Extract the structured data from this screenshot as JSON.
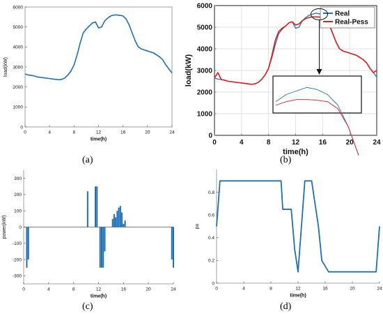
{
  "captions": [
    "(a)",
    "(b)",
    "(c)",
    "(d)"
  ],
  "chart_data": [
    {
      "panel": "a",
      "type": "line",
      "xlabel": "time(h)",
      "ylabel": "load(kW)",
      "xlim": [
        0,
        24
      ],
      "ylim": [
        0,
        6000
      ],
      "xticks": [
        0,
        4,
        8,
        12,
        16,
        20,
        24
      ],
      "yticks": [
        0,
        1000,
        2000,
        3000,
        4000,
        5000,
        6000
      ],
      "grid": false,
      "series": [
        {
          "color": "#1f6fb2",
          "x": [
            0,
            0.5,
            1,
            1.5,
            2,
            2.5,
            3,
            3.5,
            4,
            4.5,
            5,
            5.5,
            6,
            6.5,
            7,
            7.5,
            8,
            8.5,
            9,
            9.5,
            10,
            10.5,
            11,
            11.5,
            12,
            12.5,
            13,
            13.5,
            14,
            14.5,
            15,
            15.5,
            16,
            16.5,
            17,
            17.5,
            18,
            18.5,
            19,
            19.5,
            20,
            20.5,
            21,
            21.5,
            22,
            22.5,
            23,
            23.5,
            24
          ],
          "y": [
            2650,
            2600,
            2580,
            2550,
            2500,
            2480,
            2460,
            2440,
            2420,
            2400,
            2380,
            2360,
            2380,
            2450,
            2600,
            2800,
            3100,
            3600,
            4200,
            4700,
            4900,
            5050,
            5200,
            5250,
            4950,
            5000,
            5300,
            5450,
            5550,
            5600,
            5600,
            5580,
            5550,
            5400,
            5100,
            4700,
            4300,
            4000,
            3900,
            3850,
            3800,
            3750,
            3700,
            3600,
            3500,
            3350,
            3100,
            2900,
            2700
          ]
        }
      ]
    },
    {
      "panel": "b",
      "type": "line",
      "xlabel": "time(h)",
      "ylabel": "load(kW)",
      "xlim": [
        0,
        24
      ],
      "ylim": [
        0,
        6000
      ],
      "xticks": [
        0,
        4,
        8,
        12,
        16,
        20,
        24
      ],
      "yticks": [
        0,
        1000,
        2000,
        3000,
        4000,
        5000,
        6000
      ],
      "grid": true,
      "legend": "top-right",
      "series": [
        {
          "name": "Real",
          "color": "#1f77b4",
          "x": [
            0,
            0.5,
            1,
            1.5,
            2,
            2.5,
            3,
            3.5,
            4,
            4.5,
            5,
            5.5,
            6,
            6.5,
            7,
            7.5,
            8,
            8.5,
            9,
            9.5,
            10,
            10.5,
            11,
            11.5,
            12,
            12.5,
            13,
            13.5,
            14,
            14.5,
            15,
            15.5,
            16,
            16.5,
            17,
            17.5,
            18,
            18.5,
            19,
            19.5,
            20,
            20.5,
            21,
            21.5,
            22,
            22.5,
            23,
            23.5,
            24
          ],
          "y": [
            2650,
            2600,
            2580,
            2550,
            2500,
            2480,
            2460,
            2440,
            2420,
            2400,
            2380,
            2360,
            2380,
            2450,
            2600,
            2800,
            3100,
            3600,
            4200,
            4700,
            4900,
            5050,
            5200,
            5250,
            4950,
            5000,
            5300,
            5450,
            5550,
            5600,
            5650,
            5620,
            5550,
            5400,
            5100,
            4700,
            4300,
            4000,
            3900,
            3850,
            3800,
            3750,
            3700,
            3600,
            3500,
            3350,
            3100,
            2900,
            2700
          ]
        },
        {
          "name": "Real-Pess",
          "color": "#e3191c",
          "x": [
            0,
            0.5,
            1,
            1.5,
            2,
            2.5,
            3,
            3.5,
            4,
            4.5,
            5,
            5.5,
            6,
            6.5,
            7,
            7.5,
            8,
            8.5,
            9,
            9.5,
            10,
            10.5,
            11,
            11.5,
            12,
            12.5,
            13,
            13.5,
            14,
            14.5,
            15,
            15.5,
            16,
            16.5,
            17,
            17.5,
            18,
            18.5,
            19,
            19.5,
            20,
            20.5,
            21,
            21.5,
            22,
            22.5,
            23,
            23.5,
            24
          ],
          "y": [
            2650,
            2900,
            2580,
            2550,
            2500,
            2480,
            2460,
            2440,
            2420,
            2400,
            2380,
            2360,
            2380,
            2450,
            2600,
            2800,
            3100,
            3700,
            4400,
            4800,
            4950,
            5050,
            5200,
            5250,
            5100,
            5150,
            5300,
            5400,
            5450,
            5480,
            5480,
            5470,
            5450,
            5350,
            5100,
            4700,
            4300,
            4000,
            3900,
            3850,
            3800,
            3750,
            3700,
            3600,
            3500,
            3350,
            3100,
            2900,
            3000
          ]
        }
      ],
      "annotation": {
        "type": "zoom-inset",
        "ellipse_center": [
          15.5,
          5600
        ],
        "inset_x_range": [
          13.5,
          17.5
        ],
        "inset_y_range": [
          5350,
          5750
        ]
      }
    },
    {
      "panel": "c",
      "type": "bar",
      "xlabel": "time(h)",
      "ylabel": "power(kW)",
      "xlim": [
        0,
        24
      ],
      "ylim": [
        -350,
        350
      ],
      "xticks": [
        0,
        4,
        8,
        12,
        16,
        20,
        24
      ],
      "yticks": [
        -300,
        -200,
        -100,
        0,
        100,
        200,
        300
      ],
      "grid": false,
      "color": "#1f6fb2",
      "bars": [
        {
          "x": 0.5,
          "y": -250
        },
        {
          "x": 0.75,
          "y": -200
        },
        {
          "x": 10.25,
          "y": 220
        },
        {
          "x": 11.5,
          "y": 250
        },
        {
          "x": 11.75,
          "y": 250
        },
        {
          "x": 12.25,
          "y": -250
        },
        {
          "x": 12.5,
          "y": -250
        },
        {
          "x": 12.75,
          "y": -250
        },
        {
          "x": 13.0,
          "y": -150
        },
        {
          "x": 14.25,
          "y": 50
        },
        {
          "x": 14.5,
          "y": 80
        },
        {
          "x": 14.75,
          "y": 60
        },
        {
          "x": 15.0,
          "y": 100
        },
        {
          "x": 15.25,
          "y": 120
        },
        {
          "x": 15.5,
          "y": 130
        },
        {
          "x": 15.75,
          "y": 90
        },
        {
          "x": 16.0,
          "y": 20
        },
        {
          "x": 16.25,
          "y": 40
        },
        {
          "x": 23.75,
          "y": -200
        },
        {
          "x": 24.0,
          "y": -250
        }
      ]
    },
    {
      "panel": "d",
      "type": "line",
      "xlabel": "time(h)",
      "ylabel": "pu",
      "xlim": [
        0,
        24
      ],
      "ylim": [
        0,
        1
      ],
      "xticks": [
        0,
        4,
        8,
        12,
        16,
        20,
        24
      ],
      "yticks": [
        0,
        0.2,
        0.4,
        0.6,
        0.8
      ],
      "grid": false,
      "series": [
        {
          "color": "#1f6fb2",
          "x": [
            0,
            0.5,
            9.5,
            9.75,
            11,
            11.5,
            12,
            12.5,
            13.0,
            13.5,
            14,
            14.5,
            15,
            15.5,
            16,
            16.5,
            17,
            23.5,
            24
          ],
          "y": [
            0.5,
            0.9,
            0.9,
            0.65,
            0.65,
            0.3,
            0.1,
            0.5,
            0.9,
            0.9,
            0.9,
            0.7,
            0.5,
            0.2,
            0.15,
            0.1,
            0.1,
            0.1,
            0.5
          ]
        }
      ]
    }
  ]
}
